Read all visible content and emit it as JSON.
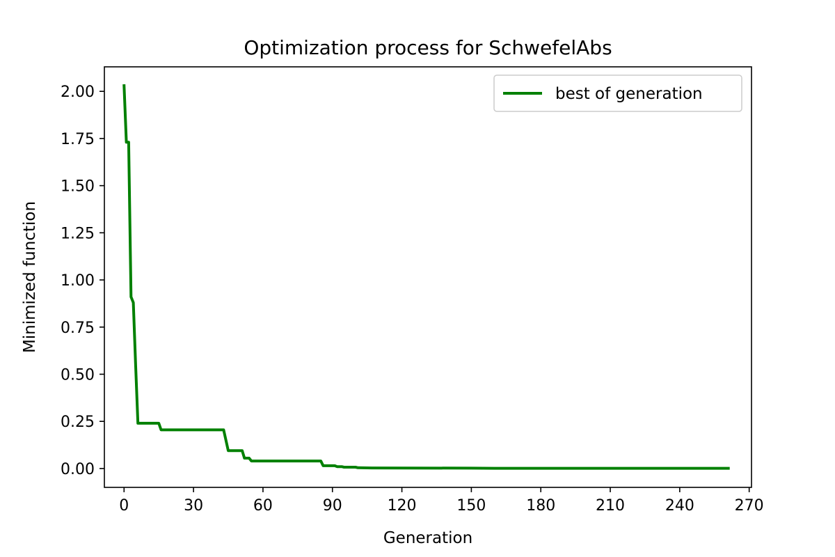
{
  "chart_data": {
    "type": "line",
    "title": "Optimization process for SchwefelAbs",
    "xlabel": "Generation",
    "ylabel": "Minimized function",
    "xlim": [
      -8.5,
      271
    ],
    "ylim": [
      -0.1,
      2.13
    ],
    "xticks": [
      0,
      30,
      60,
      90,
      120,
      150,
      180,
      210,
      240,
      270
    ],
    "yticks": [
      0.0,
      0.25,
      0.5,
      0.75,
      1.0,
      1.25,
      1.5,
      1.75,
      2.0
    ],
    "ytick_labels": [
      "0.00",
      "0.25",
      "0.50",
      "0.75",
      "1.00",
      "1.25",
      "1.50",
      "1.75",
      "2.00"
    ],
    "grid": false,
    "legend": {
      "placement": "top-right"
    },
    "series": [
      {
        "name": "best of generation",
        "color": "#008000",
        "x": [
          0,
          1,
          2,
          3,
          4,
          5,
          6,
          15,
          16,
          43,
          45,
          51,
          52,
          54,
          55,
          85,
          86,
          91,
          92,
          94,
          95,
          100,
          101,
          107,
          150,
          160,
          261
        ],
        "y": [
          2.03,
          1.73,
          1.73,
          0.91,
          0.88,
          0.55,
          0.24,
          0.24,
          0.205,
          0.205,
          0.095,
          0.095,
          0.055,
          0.055,
          0.04,
          0.04,
          0.015,
          0.015,
          0.01,
          0.01,
          0.007,
          0.007,
          0.004,
          0.003,
          0.002,
          0.001,
          0.001
        ]
      }
    ]
  }
}
